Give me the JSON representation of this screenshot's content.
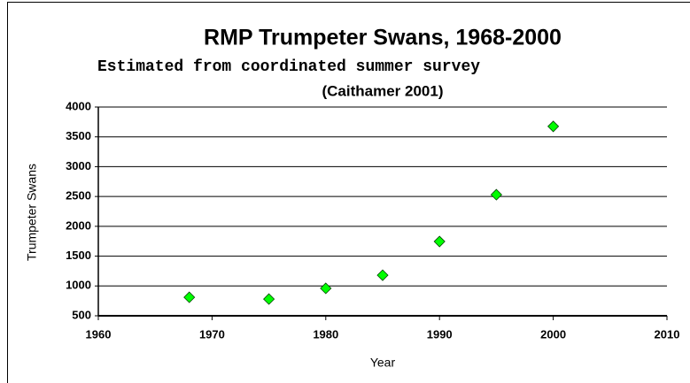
{
  "chart_data": {
    "type": "scatter",
    "title": "RMP Trumpeter Swans, 1968-2000",
    "subtitle": "Estimated from coordinated summer survey",
    "note": "(Caithamer 2001)",
    "x_label": "Year",
    "y_label": "Trumpeter Swans",
    "series": [
      {
        "name": "Trumpeter Swans",
        "color": "#00ff00",
        "x": [
          1968,
          1975,
          1980,
          1985,
          1990,
          1995,
          2000
        ],
        "values": [
          810,
          780,
          960,
          1180,
          1745,
          2530,
          3675
        ]
      }
    ],
    "xlim": [
      1960,
      2010
    ],
    "xticks": [
      1960,
      1970,
      1980,
      1990,
      2000,
      2010
    ],
    "ylim": [
      500,
      4000
    ],
    "yticks": [
      500,
      1000,
      1500,
      2000,
      2500,
      3000,
      3500,
      4000
    ],
    "grid": true
  }
}
